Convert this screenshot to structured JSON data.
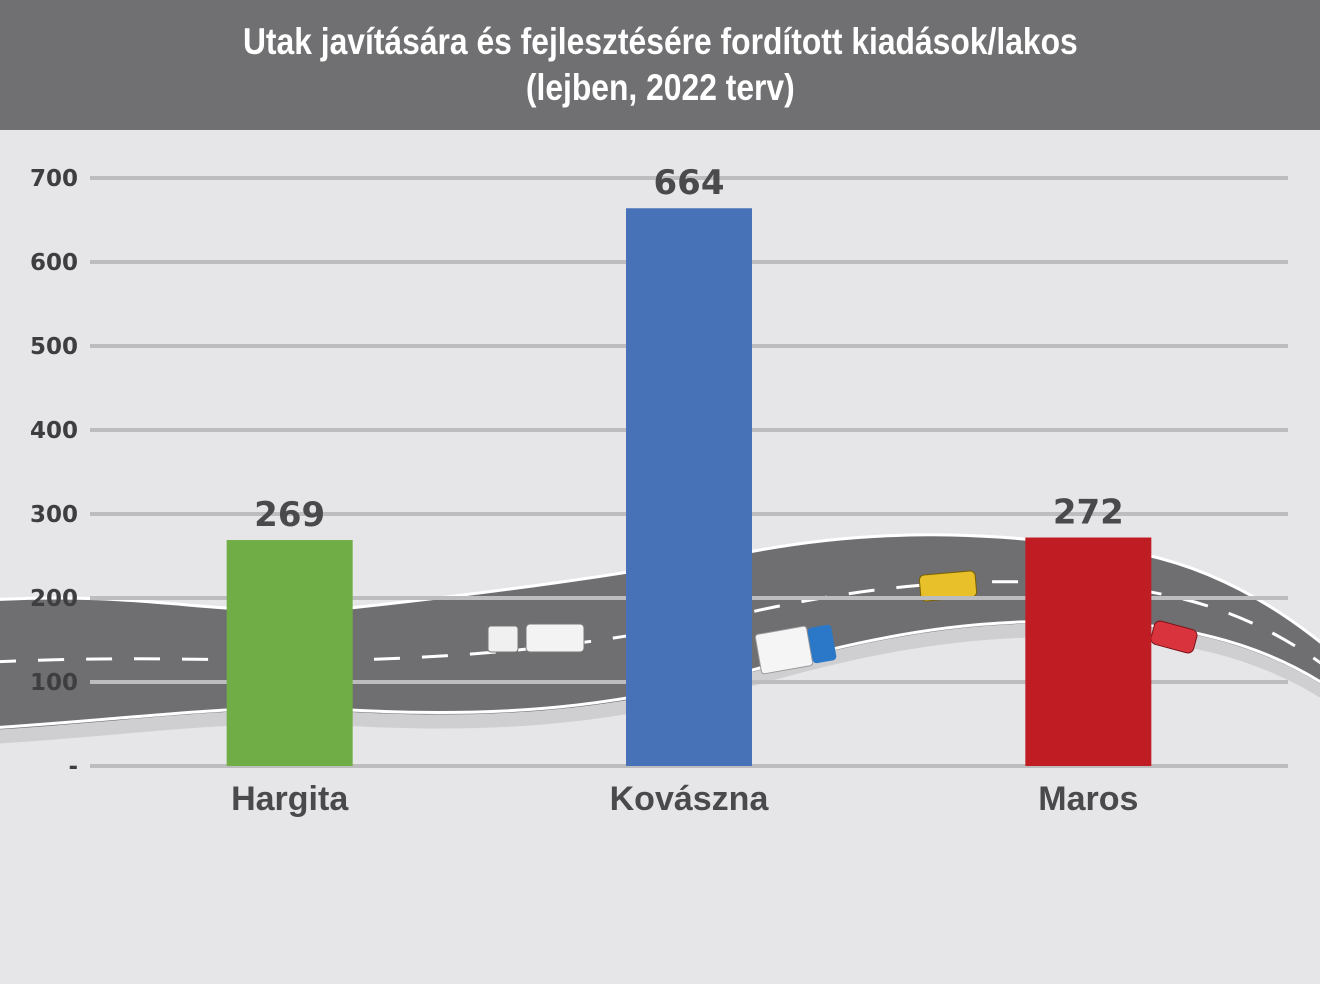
{
  "chart_data": {
    "type": "bar",
    "title": "Utak javítására és fejlesztésére fordított kiadások/lakos",
    "subtitle": "(lejben, 2022 terv)",
    "categories": [
      "Hargita",
      "Kovászna",
      "Maros"
    ],
    "values": [
      269,
      664,
      272
    ],
    "value_labels": [
      "269",
      "664",
      "272"
    ],
    "colors": [
      "#70ad47",
      "#4872b8",
      "#c01c23"
    ],
    "ylim": [
      0,
      700
    ],
    "yticks": [
      0,
      100,
      200,
      300,
      400,
      500,
      600,
      700
    ],
    "ytick_labels": [
      "-",
      "100",
      "200",
      "300",
      "400",
      "500",
      "600",
      "700"
    ],
    "grid": true,
    "legend": "none",
    "xlabel": "",
    "ylabel": ""
  },
  "background_color": "#e6e6e8",
  "header_color": "#707072",
  "gridline_color": "#bdbdc0",
  "decoration_icons": [
    "road-illustration",
    "car-icon",
    "truck-icon",
    "taxi-icon"
  ]
}
